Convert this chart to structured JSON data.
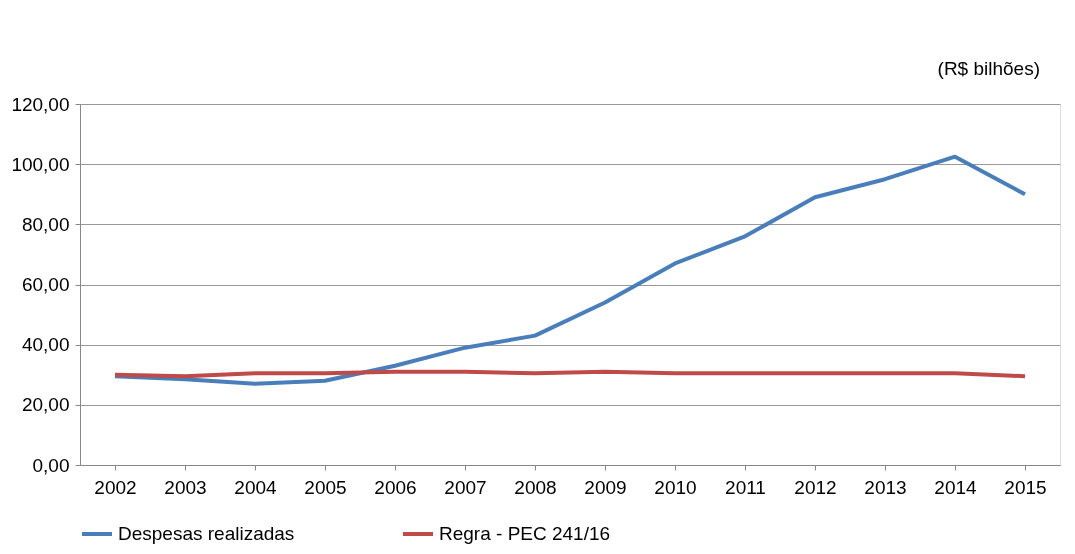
{
  "chart_data": {
    "type": "line",
    "annotations": [
      "(R$ bilhões)"
    ],
    "categories": [
      "2002",
      "2003",
      "2004",
      "2005",
      "2006",
      "2007",
      "2008",
      "2009",
      "2010",
      "2011",
      "2012",
      "2013",
      "2014",
      "2015"
    ],
    "series": [
      {
        "name": "Despesas realizadas",
        "color": "#4a7ebb",
        "values": [
          29.5,
          28.5,
          27,
          28,
          33,
          39,
          43,
          54,
          67,
          76,
          89,
          95,
          102.5,
          90
        ]
      },
      {
        "name": "Regra - PEC 241/16",
        "color": "#be4b48",
        "values": [
          30,
          29.5,
          30.5,
          30.5,
          31,
          31,
          30.5,
          31,
          30.5,
          30.5,
          30.5,
          30.5,
          30.5,
          29.5
        ]
      }
    ],
    "ylim": [
      0,
      120
    ],
    "yticks": [
      {
        "value": 0,
        "label": "0,00"
      },
      {
        "value": 20,
        "label": "20,00"
      },
      {
        "value": 40,
        "label": "40,00"
      },
      {
        "value": 60,
        "label": "60,00"
      },
      {
        "value": 80,
        "label": "80,00"
      },
      {
        "value": 100,
        "label": "100,00"
      },
      {
        "value": 120,
        "label": "120,00"
      }
    ],
    "grid": "y",
    "legend": "bottom",
    "marker": "none",
    "line_style": "solid"
  }
}
